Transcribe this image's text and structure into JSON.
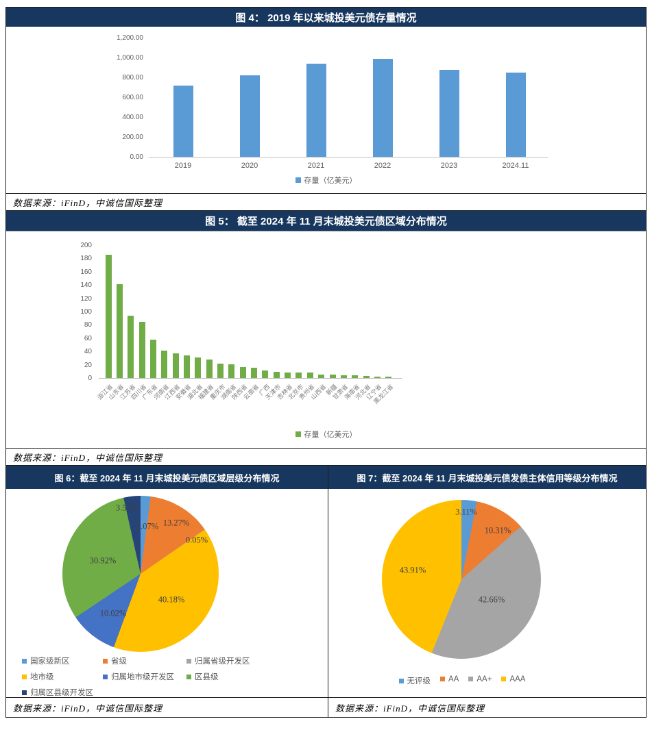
{
  "figure4": {
    "title": "图 4： 2019 年以来城投美元债存量情况",
    "source": "数据来源：iFinD，中诚信国际整理",
    "chart_data": {
      "type": "bar",
      "categories": [
        "2019",
        "2020",
        "2021",
        "2022",
        "2023",
        "2024.11"
      ],
      "values": [
        720,
        823,
        938,
        984,
        879,
        849
      ],
      "legend": "存量（亿美元）",
      "bar_color": "#5B9BD5",
      "y_ticks": [
        "1,200.00",
        "1,000.00",
        "800.00",
        "600.00",
        "400.00",
        "200.00",
        "0.00"
      ],
      "ylim": [
        0,
        1200
      ],
      "grid": false,
      "legend_position": "bottom"
    }
  },
  "figure5": {
    "title": "图 5： 截至 2024 年 11 月末城投美元债区域分布情况",
    "source": "数据来源：iFinD，中诚信国际整理",
    "chart_data": {
      "type": "bar",
      "categories": [
        "浙江省",
        "山东省",
        "江苏省",
        "四川省",
        "广东省",
        "河南省",
        "江西省",
        "安徽省",
        "湖北省",
        "福建省",
        "重庆市",
        "湖南省",
        "陕西省",
        "云南省",
        "广西",
        "天津市",
        "吉林省",
        "北京市",
        "贵州省",
        "山西省",
        "新疆",
        "甘肃省",
        "海南省",
        "河北省",
        "辽宁省",
        "黑龙江省"
      ],
      "values": [
        186,
        141,
        94,
        85,
        58,
        41,
        37,
        34,
        31,
        28,
        22,
        21,
        17,
        15,
        11,
        9,
        8,
        8,
        8,
        5,
        5,
        4,
        4,
        3,
        2,
        2
      ],
      "legend": "存量（亿美元）",
      "bar_color": "#70AD47",
      "y_ticks": [
        "200",
        "180",
        "160",
        "140",
        "120",
        "100",
        "80",
        "60",
        "40",
        "20",
        "0"
      ],
      "ylim": [
        0,
        200
      ],
      "grid": false,
      "legend_position": "bottom"
    }
  },
  "figure6": {
    "title": "图 6：截至 2024 年 11 月末城投美元债区域层级分布情况",
    "source": "数据来源：iFinD，中诚信国际整理",
    "chart_data": {
      "type": "pie",
      "slices": [
        {
          "label": "国家级新区",
          "value": 2.07,
          "data_label": "2.07%",
          "color": "#5B9BD5"
        },
        {
          "label": "省级",
          "value": 13.27,
          "data_label": "13.27%",
          "color": "#ED7D31"
        },
        {
          "label": "归属省级开发区",
          "value": 0.05,
          "data_label": "0.05%",
          "color": "#A5A5A5"
        },
        {
          "label": "地市级",
          "value": 40.18,
          "data_label": "40.18%",
          "color": "#FFC000"
        },
        {
          "label": "归属地市级开发区",
          "value": 10.02,
          "data_label": "10.02%",
          "color": "#4472C4"
        },
        {
          "label": "区县级",
          "value": 30.92,
          "data_label": "30.92%",
          "color": "#70AD47"
        },
        {
          "label": "归属区县级开发区",
          "value": 3.5,
          "data_label": "3.50%",
          "color": "#264478"
        }
      ],
      "legend_position": "bottom-left-grid"
    }
  },
  "figure7": {
    "title": "图 7：截至 2024 年 11 月末城投美元债发债主体信用等级分布情况",
    "source": "数据来源：iFinD，中诚信国际整理",
    "chart_data": {
      "type": "pie",
      "slices": [
        {
          "label": "无评级",
          "value": 3.11,
          "data_label": "3.11%",
          "color": "#5B9BD5"
        },
        {
          "label": "AA",
          "value": 10.31,
          "data_label": "10.31%",
          "color": "#ED7D31"
        },
        {
          "label": "AA+",
          "value": 42.66,
          "data_label": "42.66%",
          "color": "#A5A5A5"
        },
        {
          "label": "AAA",
          "value": 43.91,
          "data_label": "43.91%",
          "color": "#FFC000"
        }
      ],
      "legend_position": "bottom-center"
    }
  },
  "colors": {
    "header_bg": "#17375E",
    "header_text": "#ffffff",
    "bar_blue": "#5B9BD5",
    "bar_green": "#70AD47",
    "axis_line": "#BFBFBF"
  }
}
